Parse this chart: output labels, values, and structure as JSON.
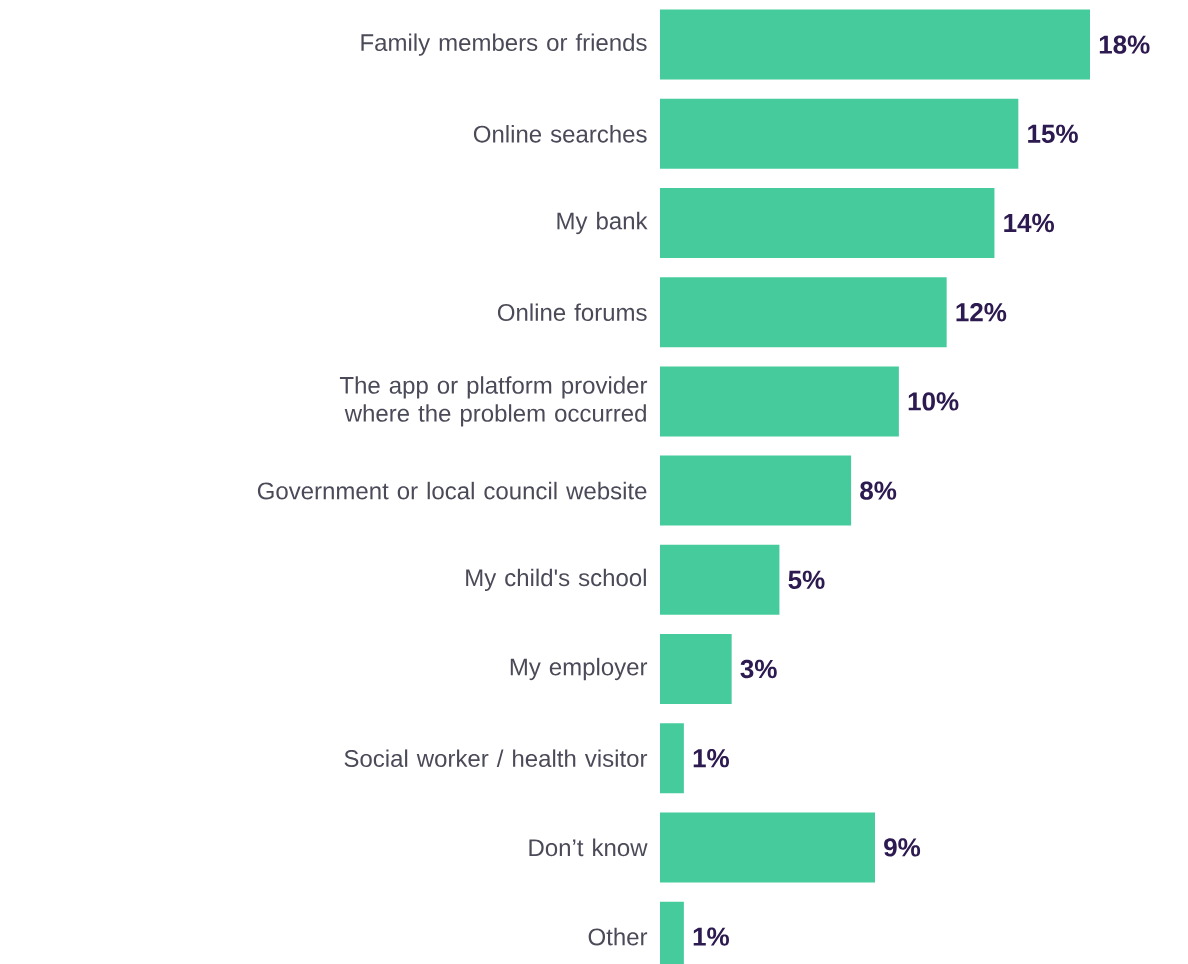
{
  "chart_data": {
    "type": "bar",
    "orientation": "horizontal",
    "relative": false,
    "categories": [
      "Family members or friends",
      "Online searches",
      "My bank",
      "Online forums",
      "The app or platform provider where the problem occurred",
      "Government or local council website",
      "My child's school",
      "My employer",
      "Social worker / health visitor",
      "Don’t know",
      "Other"
    ],
    "values": [
      18,
      15,
      14,
      12,
      10,
      8,
      5,
      3,
      1,
      9,
      1
    ],
    "value_labels": [
      "18%",
      "15%",
      "14%",
      "12%",
      "10%",
      "8%",
      "5%",
      "3%",
      "1%",
      "9%",
      "1%"
    ],
    "color": "#46cc9c"
  }
}
